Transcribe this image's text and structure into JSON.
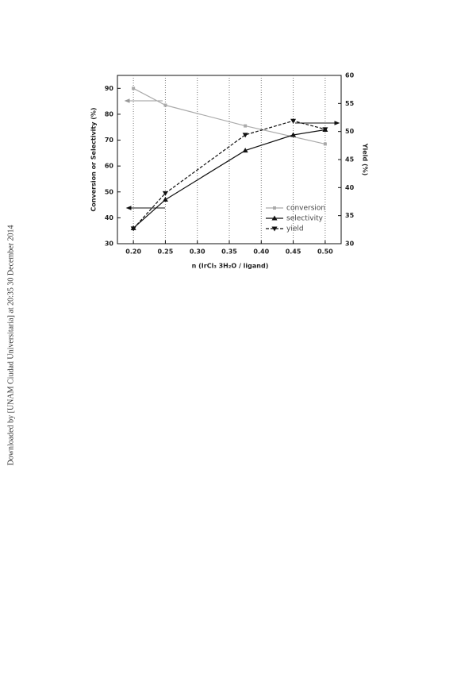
{
  "side_text": "Downloaded by [UNAM Ciudad Universitaria] at 20:35 30 December 2014",
  "chart_data": {
    "type": "line",
    "x_label": "n (IrCl₃ 3H₂O / ligand)",
    "y_label": "Conversion or Selectivity (%)",
    "y2_label": "Yield (%)",
    "xlim": [
      0.175,
      0.525
    ],
    "xticks": [
      {
        "value": 0.2,
        "label": "0.20"
      },
      {
        "value": 0.25,
        "label": "0.25"
      },
      {
        "value": 0.3,
        "label": "0.30"
      },
      {
        "value": 0.35,
        "label": "0.35"
      },
      {
        "value": 0.4,
        "label": "0.40"
      },
      {
        "value": 0.45,
        "label": "0.45"
      },
      {
        "value": 0.5,
        "label": "0.50"
      }
    ],
    "ylim": [
      30,
      95
    ],
    "yticks": [
      30,
      40,
      50,
      60,
      70,
      80,
      90
    ],
    "y2lim": [
      30,
      60
    ],
    "y2ticks": [
      30,
      35,
      40,
      45,
      50,
      55,
      60
    ],
    "grid": "x",
    "legend": "lower right",
    "series": [
      {
        "name": "conversion",
        "color": "#aaaaaa",
        "marker": "square",
        "line_style": "solid",
        "x": [
          0.2,
          0.25,
          0.375,
          0.5
        ],
        "values": [
          90,
          83.5,
          75.5,
          68.5
        ]
      },
      {
        "name": "selectivity",
        "color": "#111111",
        "marker": "triangle-up",
        "line_style": "solid",
        "x": [
          0.2,
          0.25,
          0.375,
          0.45,
          0.5
        ],
        "values": [
          36,
          47,
          66,
          72,
          74
        ]
      },
      {
        "name": "yield",
        "color": "#111111",
        "marker": "triangle-down",
        "line_style": "dashed",
        "axis": "y2",
        "x": [
          0.2,
          0.25,
          0.375,
          0.45,
          0.5
        ],
        "values": [
          32.7,
          39,
          49.4,
          51.9,
          50.4
        ]
      }
    ]
  }
}
